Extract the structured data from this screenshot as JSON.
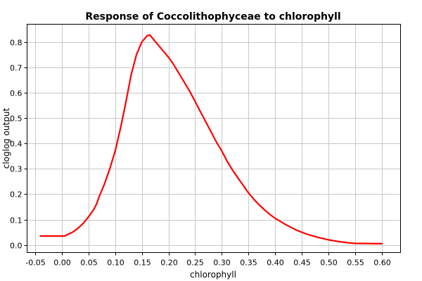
{
  "chart_data": {
    "type": "line",
    "title": "Response of Coccolithophyceae to chlorophyll",
    "xlabel": "chlorophyll",
    "ylabel": "cloglog output",
    "xlim": [
      -0.065,
      0.635
    ],
    "ylim": [
      -0.03,
      0.87
    ],
    "x_ticks": [
      "-0.05",
      "0.00",
      "0.05",
      "0.10",
      "0.15",
      "0.20",
      "0.25",
      "0.30",
      "0.35",
      "0.40",
      "0.45",
      "0.50",
      "0.55",
      "0.60"
    ],
    "y_ticks": [
      "0.0",
      "0.1",
      "0.2",
      "0.3",
      "0.4",
      "0.5",
      "0.6",
      "0.7",
      "0.8"
    ],
    "grid": true,
    "series": [
      {
        "color": "#ff0000",
        "x": [
          -0.04,
          -0.02,
          0.0,
          0.005,
          0.01,
          0.02,
          0.03,
          0.04,
          0.05,
          0.06,
          0.065,
          0.07,
          0.08,
          0.09,
          0.1,
          0.11,
          0.12,
          0.13,
          0.14,
          0.15,
          0.16,
          0.165,
          0.17,
          0.18,
          0.19,
          0.2,
          0.21,
          0.22,
          0.23,
          0.24,
          0.25,
          0.26,
          0.27,
          0.28,
          0.29,
          0.3,
          0.31,
          0.32,
          0.33,
          0.34,
          0.35,
          0.36,
          0.37,
          0.38,
          0.39,
          0.4,
          0.42,
          0.44,
          0.46,
          0.48,
          0.5,
          0.52,
          0.54,
          0.55,
          0.6
        ],
        "y": [
          0.035,
          0.035,
          0.035,
          0.035,
          0.04,
          0.05,
          0.065,
          0.085,
          0.11,
          0.14,
          0.16,
          0.19,
          0.24,
          0.3,
          0.37,
          0.46,
          0.56,
          0.67,
          0.75,
          0.8,
          0.825,
          0.828,
          0.815,
          0.79,
          0.765,
          0.74,
          0.71,
          0.675,
          0.64,
          0.605,
          0.565,
          0.525,
          0.485,
          0.445,
          0.405,
          0.37,
          0.33,
          0.295,
          0.265,
          0.235,
          0.205,
          0.18,
          0.158,
          0.138,
          0.12,
          0.105,
          0.08,
          0.058,
          0.042,
          0.03,
          0.02,
          0.013,
          0.008,
          0.006,
          0.005
        ]
      }
    ]
  }
}
